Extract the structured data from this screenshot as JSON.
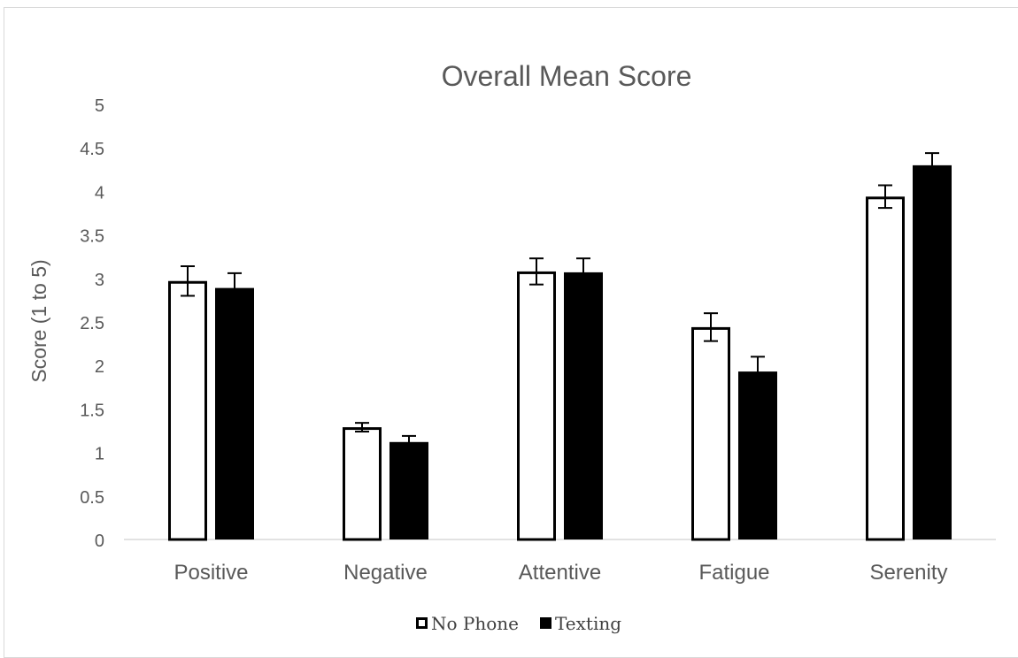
{
  "chart_data": {
    "type": "bar",
    "title": "Overall Mean Score",
    "xlabel": "",
    "ylabel": "Score (1 to 5)",
    "ylim": [
      0,
      5
    ],
    "yticks": [
      "0",
      "0.5",
      "1",
      "1.5",
      "2",
      "2.5",
      "3",
      "3.5",
      "4",
      "4.5",
      "5"
    ],
    "categories": [
      "Positive",
      "Negative",
      "Attentive",
      "Fatigue",
      "Serenity"
    ],
    "series": [
      {
        "name": "No Phone",
        "fill": "#ffffff",
        "stroke": "#000000",
        "values": [
          2.97,
          1.29,
          3.08,
          2.44,
          3.94
        ],
        "errors": [
          0.17,
          0.05,
          0.15,
          0.16,
          0.13
        ]
      },
      {
        "name": "Texting",
        "fill": "#000000",
        "stroke": "#000000",
        "values": [
          2.89,
          1.12,
          3.07,
          1.93,
          4.3
        ],
        "errors": [
          0.17,
          0.07,
          0.16,
          0.17,
          0.14
        ]
      }
    ],
    "grid": false,
    "legend_position": "bottom"
  },
  "colors": {
    "text": "#595959",
    "axis_line": "#d9d9d9",
    "border": "#d9d9d9"
  }
}
